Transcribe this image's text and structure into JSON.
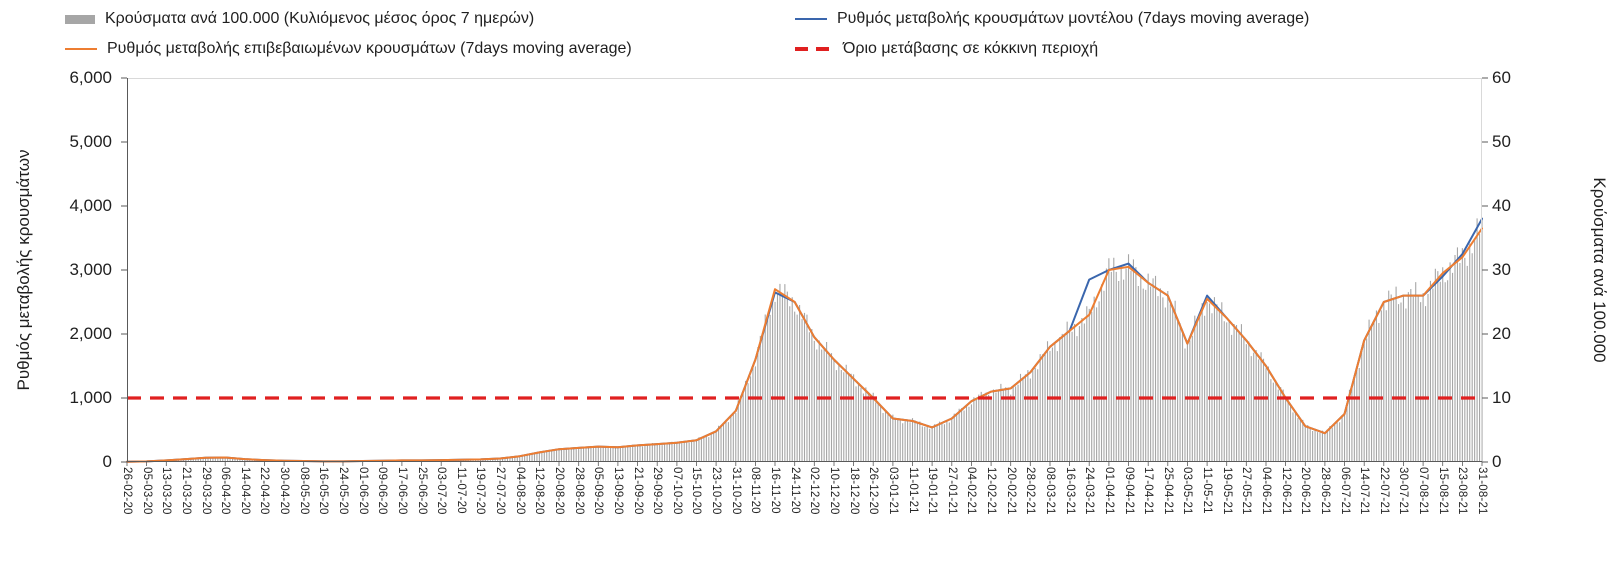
{
  "chart_data": {
    "type": "combo-bar-line",
    "ylabel_left": "Ρυθμός μεταβολής κρουσμάτων",
    "ylabel_right": "Κρούσματα ανά 100.000",
    "left_ylim": [
      0,
      6000
    ],
    "right_ylim": [
      0,
      60
    ],
    "left_ticks": [
      "6,000",
      "5,000",
      "4,000",
      "3,000",
      "2,000",
      "1,000",
      "0"
    ],
    "right_ticks": [
      "60",
      "50",
      "40",
      "30",
      "20",
      "10",
      "0"
    ],
    "grid": false,
    "legend_position": "top",
    "x": [
      "26-02-20",
      "05-03-20",
      "13-03-20",
      "21-03-20",
      "29-03-20",
      "06-04-20",
      "14-04-20",
      "22-04-20",
      "30-04-20",
      "08-05-20",
      "16-05-20",
      "24-05-20",
      "01-06-20",
      "09-06-20",
      "17-06-20",
      "25-06-20",
      "03-07-20",
      "11-07-20",
      "19-07-20",
      "27-07-20",
      "04-08-20",
      "12-08-20",
      "20-08-20",
      "28-08-20",
      "05-09-20",
      "13-09-20",
      "21-09-20",
      "29-09-20",
      "07-10-20",
      "15-10-20",
      "23-10-20",
      "31-10-20",
      "08-11-20",
      "16-11-20",
      "24-11-20",
      "02-12-20",
      "10-12-20",
      "18-12-20",
      "26-12-20",
      "03-01-21",
      "11-01-21",
      "19-01-21",
      "27-01-21",
      "04-02-21",
      "12-02-21",
      "20-02-21",
      "28-02-21",
      "08-03-21",
      "16-03-21",
      "24-03-21",
      "01-04-21",
      "09-04-21",
      "17-04-21",
      "25-04-21",
      "03-05-21",
      "11-05-21",
      "19-05-21",
      "27-05-21",
      "04-06-21",
      "12-06-21",
      "20-06-21",
      "28-06-21",
      "06-07-21",
      "14-07-21",
      "22-07-21",
      "30-07-21",
      "07-08-21",
      "15-08-21",
      "23-08-21",
      "31-08-21"
    ],
    "series": [
      {
        "name": "Κρούσματα ανά 100.000 (Κυλιόμενος μέσος όρος 7 ημερών)",
        "type": "bar",
        "axis": "right",
        "color": "#a6a6a6",
        "values": [
          0.1,
          0.1,
          0.3,
          0.5,
          0.7,
          0.7,
          0.5,
          0.3,
          0.2,
          0.2,
          0.1,
          0.1,
          0.2,
          0.2,
          0.3,
          0.3,
          0.3,
          0.4,
          0.4,
          0.6,
          0.9,
          1.5,
          2.0,
          2.2,
          2.4,
          2.3,
          2.6,
          2.8,
          3.0,
          3.4,
          4.8,
          8.0,
          16.0,
          27.0,
          25.0,
          19.5,
          16.0,
          13.0,
          10.0,
          6.8,
          6.4,
          5.4,
          6.8,
          9.5,
          11.0,
          11.5,
          14.0,
          18.0,
          20.5,
          23.0,
          30.0,
          30.5,
          28.0,
          26.0,
          18.5,
          25.5,
          22.5,
          19.0,
          15.0,
          10.0,
          5.6,
          4.5,
          7.5,
          19.0,
          25.0,
          26.0,
          26.0,
          29.5,
          32.0,
          36.5
        ]
      },
      {
        "name": "Ρυθμός μεταβολής κρουσμάτων μοντέλου (7days moving average)",
        "type": "line",
        "axis": "left",
        "color": "#3a66ad",
        "values": [
          5,
          10,
          25,
          45,
          65,
          70,
          45,
          30,
          20,
          15,
          10,
          10,
          15,
          20,
          25,
          25,
          30,
          35,
          40,
          55,
          90,
          150,
          200,
          220,
          240,
          230,
          260,
          280,
          300,
          340,
          480,
          800,
          1600,
          2650,
          2500,
          1950,
          1600,
          1300,
          1000,
          680,
          640,
          540,
          680,
          950,
          1100,
          1150,
          1400,
          1800,
          2050,
          2850,
          3000,
          3100,
          2800,
          2600,
          1850,
          2600,
          2250,
          1900,
          1500,
          1000,
          560,
          450,
          750,
          1900,
          2500,
          2600,
          2600,
          2900,
          3250,
          3800
        ]
      },
      {
        "name": "Ρυθμός μεταβολής επιβεβαιωμένων κρουσμάτων (7days moving average)",
        "type": "line",
        "axis": "left",
        "color": "#ed7d31",
        "values": [
          5,
          10,
          25,
          45,
          65,
          70,
          45,
          30,
          20,
          15,
          10,
          10,
          15,
          20,
          25,
          25,
          30,
          35,
          40,
          55,
          90,
          150,
          200,
          220,
          240,
          230,
          260,
          280,
          300,
          340,
          480,
          800,
          1600,
          2700,
          2500,
          1950,
          1600,
          1300,
          1000,
          680,
          640,
          540,
          680,
          950,
          1100,
          1150,
          1400,
          1800,
          2050,
          2300,
          3000,
          3050,
          2800,
          2600,
          1850,
          2550,
          2250,
          1900,
          1500,
          1000,
          560,
          450,
          750,
          1900,
          2500,
          2600,
          2600,
          2950,
          3200,
          3650
        ]
      },
      {
        "name": "Όριο μετάβασης σε κόκκινη περιοχή",
        "type": "hline",
        "axis": "left",
        "color": "#e02020",
        "value": 1000
      }
    ]
  }
}
